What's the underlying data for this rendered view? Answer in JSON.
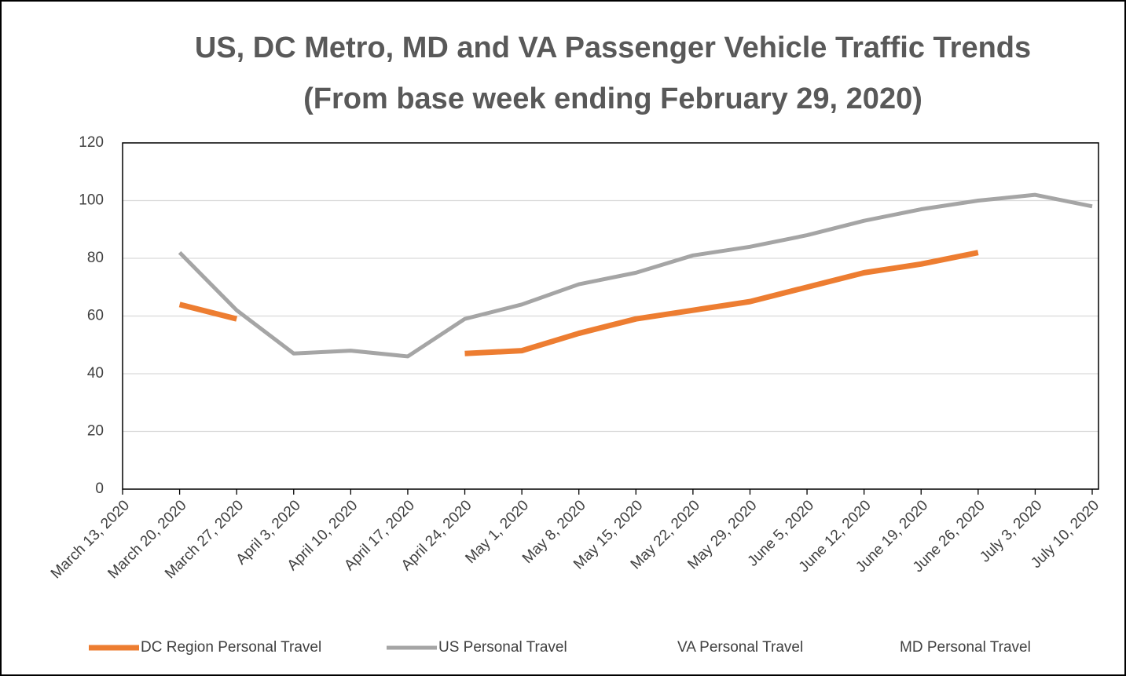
{
  "chart_data": {
    "type": "line",
    "title": "US, DC Metro, MD and VA Passenger Vehicle Traffic Trends",
    "subtitle": "(From base week ending February 29, 2020)",
    "categories": [
      "March 13, 2020",
      "March 20, 2020",
      "March 27, 2020",
      "April 3, 2020",
      "April 10, 2020",
      "April 17, 2020",
      "April 24, 2020",
      "May 1, 2020",
      "May 8, 2020",
      "May 15, 2020",
      "May 22, 2020",
      "May 29, 2020",
      "June 5, 2020",
      "June 12, 2020",
      "June 19, 2020",
      "June 26, 2020",
      "July 3, 2020",
      "July 10, 2020"
    ],
    "series": [
      {
        "name": "DC Region Personal Travel",
        "color": "#ed7d31",
        "values": [
          null,
          64,
          59,
          null,
          null,
          null,
          47,
          48,
          54,
          59,
          62,
          65,
          70,
          75,
          78,
          82,
          null,
          null
        ]
      },
      {
        "name": "US Personal Travel",
        "color": "#a5a5a5",
        "values": [
          null,
          82,
          62,
          47,
          48,
          46,
          59,
          64,
          71,
          75,
          81,
          84,
          88,
          93,
          97,
          100,
          102,
          98
        ]
      },
      {
        "name": "VA Personal Travel",
        "values": [
          null,
          null,
          null,
          null,
          null,
          null,
          null,
          null,
          null,
          null,
          null,
          null,
          null,
          null,
          null,
          null,
          null,
          null
        ]
      },
      {
        "name": "MD Personal Travel",
        "values": [
          null,
          null,
          null,
          null,
          null,
          null,
          null,
          null,
          null,
          null,
          null,
          null,
          null,
          null,
          null,
          null,
          null,
          null
        ]
      }
    ],
    "ylim": [
      0,
      120
    ],
    "yticks": [
      0,
      20,
      40,
      60,
      80,
      100,
      120
    ],
    "grid": true,
    "legend": "bottom"
  }
}
